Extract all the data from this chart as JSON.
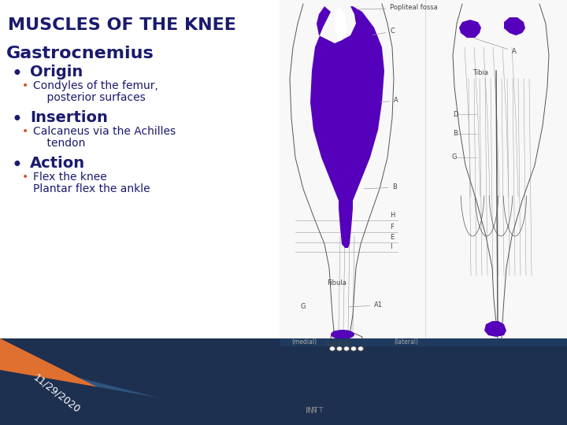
{
  "title": "MUSCLES OF THE KNEE",
  "title_color": "#1a1a6e",
  "title_fontsize": 16,
  "bg_color": "#ffffff",
  "footer_orange": "#e07030",
  "footer_mid_blue": "#2d5580",
  "footer_dark_navy": "#1e3050",
  "muscle_name": "Gastrocnemius",
  "muscle_name_color": "#1a1a6e",
  "muscle_name_fontsize": 16,
  "heading_fontsize": 14,
  "sub_fontsize": 10,
  "heading_color": "#1a1a6e",
  "sub_color": "#1a1a6e",
  "bullet_big_color": "#1a1a6e",
  "bullet_small_color": "#cc5522",
  "sections": [
    {
      "heading": "Origin",
      "items": [
        "Condyles of the femur,",
        "    posterior surfaces"
      ]
    },
    {
      "heading": "Insertion",
      "items": [
        "Calcaneus via the Achilles",
        "    tendon"
      ]
    },
    {
      "heading": "Action",
      "items": [
        "Flex the knee",
        "Plantar flex the ankle"
      ]
    }
  ],
  "date_text": "11/29/2020",
  "date_color": "#ffffff",
  "date_fontsize": 9,
  "purple": "#5500bb",
  "line_color": "#555555",
  "light_line": "#999999",
  "label_color": "#444444",
  "label_fs": 6
}
